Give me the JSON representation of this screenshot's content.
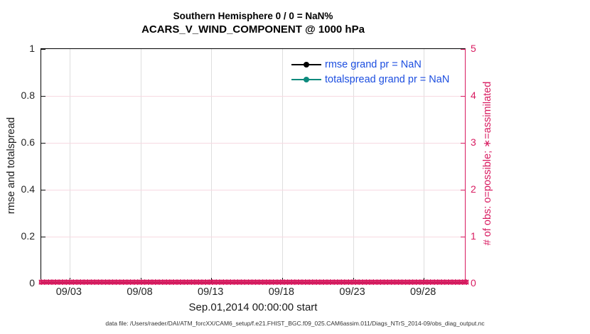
{
  "figure": {
    "title_line1": "Southern Hemisphere 0 / 0 = NaN%",
    "title_line2": "ACARS_V_WIND_COMPONENT @ 1000 hPa",
    "xlabel": "Sep.01,2014 00:00:00 start",
    "ylabel_left": "rmse and totalspread",
    "ylabel_right": "# of obs: o=possible; ∗=assimilated",
    "caption": "data file: /Users/raeder/DAI/ATM_forcXX/CAM6_setup/f.e21.FHIST_BGC.f09_025.CAM6assim.011/Diags_NTrS_2014-09/obs_diag_output.nc"
  },
  "legend": [
    {
      "label": "rmse grand pr = NaN",
      "color": "#000000"
    },
    {
      "label": "totalspread grand pr = NaN",
      "color": "#0d8a7d"
    }
  ],
  "colors": {
    "obs_axis_pink": "#d81b60",
    "grid_horizontal": "#f7d9e2",
    "grid_vertical": "#dedede",
    "legend_text_blue": "#1c4ee0",
    "rmse_black": "#000000",
    "totalspread_teal": "#0d8a7d"
  },
  "chart_data": {
    "type": "line",
    "title": "Southern Hemisphere 0 / 0 = NaN% — ACARS_V_WIND_COMPONENT @ 1000 hPa",
    "xlabel": "Sep.01,2014 00:00:00 start",
    "x_range_days": 30,
    "x_start": "Sep.01,2014 00:00:00",
    "x_ticks": [
      {
        "label": "09/03",
        "day": 2
      },
      {
        "label": "09/08",
        "day": 7
      },
      {
        "label": "09/13",
        "day": 12
      },
      {
        "label": "09/18",
        "day": 17
      },
      {
        "label": "09/23",
        "day": 22
      },
      {
        "label": "09/28",
        "day": 27
      }
    ],
    "left_axis": {
      "label": "rmse and totalspread",
      "range": [
        0,
        1
      ],
      "ticks": [
        0,
        0.2,
        0.4,
        0.6,
        0.8,
        1
      ]
    },
    "right_axis": {
      "label": "# of obs: o=possible; ∗=assimilated",
      "range": [
        0,
        5
      ],
      "ticks": [
        0,
        1,
        2,
        3,
        4,
        5
      ]
    },
    "series": [
      {
        "name": "rmse",
        "grand_value": "NaN",
        "values": "all NaN (no data plotted)"
      },
      {
        "name": "totalspread",
        "grand_value": "NaN",
        "values": "all NaN (no data plotted)"
      }
    ],
    "obs_counts": {
      "possible_per_time": 0,
      "assimilated_per_time": 0,
      "n_times": 120,
      "marker_y_value": 0,
      "note": "o and ∗ markers all at y=0 along entire x range"
    },
    "grid": true,
    "legend_position": "top-right-inside"
  }
}
